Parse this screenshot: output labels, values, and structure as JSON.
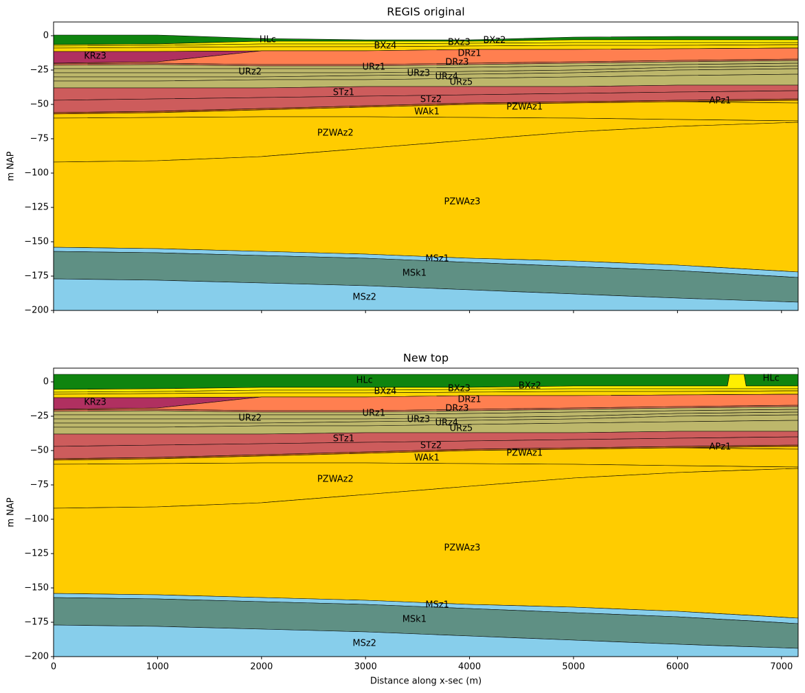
{
  "chart_data": [
    {
      "type": "layers",
      "title": "REGIS original",
      "ylabel": "m NAP",
      "x": [
        0,
        1000,
        2000,
        3000,
        4000,
        5000,
        6000,
        7160
      ],
      "xlim": [
        0,
        7160
      ],
      "ylim": [
        -200,
        10
      ],
      "xticks": [
        0,
        1000,
        2000,
        3000,
        4000,
        5000,
        6000,
        7000
      ],
      "xticklabels": false,
      "yticks": [
        0,
        {
          "value": -25,
          "label": "−25"
        },
        {
          "value": -50,
          "label": "−50"
        },
        {
          "value": -75,
          "label": "−75"
        },
        {
          "value": -100,
          "label": "−100"
        },
        {
          "value": -125,
          "label": "−125"
        },
        {
          "value": -150,
          "label": "−150"
        },
        {
          "value": -175,
          "label": "−175"
        },
        {
          "value": -200,
          "label": "−200"
        }
      ],
      "series": [
        {
          "name": "HLc",
          "color": "#0f840f",
          "values": [
            0.5,
            0.5,
            -2,
            -3,
            -3,
            -1,
            -0.5,
            -0.5
          ],
          "label_at": [
            [
              2060,
              -3
            ]
          ]
        },
        {
          "name": "BXz2",
          "color": "#ffef00",
          "values": [
            -6.5,
            -6,
            -4,
            -4,
            -4,
            -3,
            -3,
            -3
          ],
          "label_at": [
            [
              4240,
              -3.5
            ]
          ]
        },
        {
          "name": "BXz3",
          "color": "#ffe400",
          "values": [
            -7.5,
            -7,
            -6,
            -6,
            -5.5,
            -5,
            -5,
            -5
          ],
          "label_at": [
            [
              3900,
              -5
            ]
          ]
        },
        {
          "name": "BXz4",
          "color": "#ffd700",
          "values": [
            -9,
            -8.5,
            -8,
            -8,
            -7.5,
            -7,
            -7,
            -6.5
          ],
          "label_at": [
            [
              3190,
              -7.5
            ]
          ]
        },
        {
          "name": "KRz3",
          "color": "#b03060",
          "values": [
            -11.5,
            -11.5,
            -11,
            -11,
            -10,
            -10,
            -9.5,
            -9
          ],
          "label_at": [
            [
              400,
              -15
            ]
          ]
        },
        {
          "name": "DRz1",
          "color": "#ff7f50",
          "values": [
            -20,
            -19,
            -11,
            -11,
            -10,
            -10,
            -9.5,
            -9
          ],
          "label_at": [
            [
              4000,
              -13
            ]
          ]
        },
        {
          "name": "DRz3",
          "color": "#f08060",
          "values": [
            -20.5,
            -20,
            -21,
            -21,
            -20,
            -19,
            -18,
            -17
          ],
          "label_at": [
            [
              3880,
              -19.5
            ]
          ]
        },
        {
          "name": "URz2",
          "color": "#bdb76b",
          "values": [
            -21.5,
            -21,
            -22,
            -22,
            -21,
            -20,
            -19,
            -18
          ],
          "label_at": [
            [
              1890,
              -26.5
            ]
          ]
        },
        {
          "name": "URz1",
          "color": "#bdb76b",
          "values": [
            -24,
            -24,
            -24,
            -24,
            -23,
            -22,
            -21,
            -20
          ],
          "label_at": [
            [
              3080,
              -23
            ]
          ]
        },
        {
          "name": "URz3",
          "color": "#bdb76b",
          "values": [
            -27,
            -27,
            -27,
            -27,
            -26,
            -25,
            -23,
            -22
          ],
          "label_at": [
            [
              3510,
              -27.5
            ]
          ]
        },
        {
          "name": "URz4",
          "color": "#bdb76b",
          "values": [
            -30,
            -30,
            -30,
            -29,
            -28,
            -27,
            -25,
            -24
          ],
          "label_at": [
            [
              3780,
              -30
            ]
          ]
        },
        {
          "name": "URz5",
          "color": "#bdb76b",
          "values": [
            -33,
            -33,
            -32,
            -32,
            -31,
            -30,
            -29,
            -28
          ],
          "label_at": [
            [
              3920,
              -34
            ]
          ]
        },
        {
          "name": "STz1",
          "color": "#cd5c5c",
          "values": [
            -38,
            -38,
            -38,
            -37,
            -37,
            -37,
            -36,
            -36
          ],
          "label_at": [
            [
              2790,
              -41.5
            ]
          ]
        },
        {
          "name": "STz2",
          "color": "#cd5c5c",
          "values": [
            -47,
            -46,
            -45,
            -44,
            -43,
            -42,
            -41,
            -40
          ],
          "label_at": [
            [
              3630,
              -46.5
            ]
          ]
        },
        {
          "name": "WAk1",
          "color": "#d2691e",
          "values": [
            -56,
            -55,
            -53,
            -51,
            -49,
            -48,
            -47,
            -46
          ],
          "label_at": [
            [
              3590,
              -55.5
            ]
          ]
        },
        {
          "name": "APz1",
          "color": "#ffcc00",
          "values": [
            -57,
            -56,
            -54,
            -52,
            -50,
            -49,
            -48,
            -47
          ],
          "label_at": [
            [
              6410,
              -47.5
            ]
          ]
        },
        {
          "name": "PZWAz1",
          "color": "#ffcc00",
          "values": [
            -57,
            -56,
            -54,
            -52,
            -50,
            -49,
            -48,
            -49
          ],
          "label_at": [
            [
              4530,
              -52
            ]
          ]
        },
        {
          "name": "PZWAz2",
          "color": "#ffcc00",
          "values": [
            -60,
            -59.5,
            -59,
            -59,
            -59.5,
            -60,
            -61,
            -62
          ],
          "label_at": [
            [
              2710,
              -71
            ]
          ]
        },
        {
          "name": "PZWAz3",
          "color": "#ffcc00",
          "values": [
            -92,
            -91,
            -88,
            -82,
            -76,
            -70,
            -66,
            -63
          ],
          "label_at": [
            [
              3930,
              -121
            ]
          ]
        },
        {
          "name": "MSz1",
          "color": "#87ceeb",
          "values": [
            -154,
            -155,
            -157,
            -159,
            -162,
            -164,
            -167,
            -172
          ],
          "label_at": [
            [
              3690,
              -162.5
            ]
          ]
        },
        {
          "name": "MSk1",
          "color": "#5f9084",
          "values": [
            -157,
            -158,
            -160,
            -162,
            -165,
            -168,
            -171,
            -176
          ],
          "label_at": [
            [
              3470,
              -173
            ]
          ]
        },
        {
          "name": "MSz2",
          "color": "#87ceeb",
          "values": [
            -177,
            -178,
            -180,
            -182,
            -185,
            -188,
            -191,
            -194
          ],
          "label_at": [
            [
              2990,
              -190.5
            ]
          ]
        }
      ]
    },
    {
      "type": "layers",
      "title": "New top",
      "ylabel": "m NAP",
      "xlabel": "Distance along x-sec (m)",
      "x": [
        0,
        1000,
        2000,
        3000,
        4000,
        5000,
        6000,
        6480,
        6500,
        6640,
        6660,
        7160
      ],
      "xlim": [
        0,
        7160
      ],
      "ylim": [
        -200,
        10
      ],
      "xticks": [
        0,
        1000,
        2000,
        3000,
        4000,
        5000,
        6000,
        7000
      ],
      "xticklabels": true,
      "yticks": [
        0,
        {
          "value": -25,
          "label": "−25"
        },
        {
          "value": -50,
          "label": "−50"
        },
        {
          "value": -75,
          "label": "−75"
        },
        {
          "value": -100,
          "label": "−100"
        },
        {
          "value": -125,
          "label": "−125"
        },
        {
          "value": -150,
          "label": "−150"
        },
        {
          "value": -175,
          "label": "−175"
        },
        {
          "value": -200,
          "label": "−200"
        }
      ],
      "series": [
        {
          "name": "HLc",
          "color": "#0f840f",
          "values": [
            5.5,
            5.5,
            5.5,
            5.5,
            5.5,
            5.5,
            5.5,
            5.5,
            5.5,
            5.5,
            5.5,
            5.5
          ],
          "label_at": [
            [
              2990,
              1
            ],
            [
              6900,
              2.5
            ]
          ]
        },
        {
          "name": "BXz2",
          "color": "#ffef00",
          "values": [
            -5.5,
            -5,
            -4,
            -4,
            -4,
            -3,
            -3,
            -3,
            5.5,
            5.5,
            -3,
            -3
          ],
          "label_at": [
            [
              4580,
              -3
            ]
          ]
        },
        {
          "name": "BXz3",
          "color": "#ffe400",
          "values": [
            -7.5,
            -7,
            -6,
            -6,
            -5.5,
            -5,
            -5,
            -5,
            -5,
            -5,
            -5,
            -5
          ],
          "label_at": [
            [
              3900,
              -5
            ]
          ]
        },
        {
          "name": "BXz4",
          "color": "#ffd700",
          "values": [
            -9,
            -8.5,
            -8,
            -8,
            -7.5,
            -7,
            -7,
            -6.8,
            -6.8,
            -6.7,
            -6.7,
            -6.5
          ],
          "label_at": [
            [
              3190,
              -7
            ]
          ]
        },
        {
          "name": "KRz3",
          "color": "#b03060",
          "values": [
            -11.5,
            -11.5,
            -11,
            -11,
            -10,
            -10,
            -9.5,
            -9.3,
            -9.3,
            -9.2,
            -9.2,
            -9
          ],
          "label_at": [
            [
              400,
              -15
            ]
          ]
        },
        {
          "name": "DRz1",
          "color": "#ff7f50",
          "values": [
            -20,
            -19,
            -11,
            -11,
            -10,
            -10,
            -9.5,
            -9.3,
            -9.3,
            -9.2,
            -9.2,
            -9
          ],
          "label_at": [
            [
              4000,
              -13
            ]
          ]
        },
        {
          "name": "DRz3",
          "color": "#f08060",
          "values": [
            -20.5,
            -20,
            -21,
            -21,
            -20,
            -19,
            -18,
            -17.6,
            -17.6,
            -17.4,
            -17.4,
            -17
          ],
          "label_at": [
            [
              3880,
              -19.5
            ]
          ]
        },
        {
          "name": "URz2",
          "color": "#bdb76b",
          "values": [
            -21.5,
            -21,
            -22,
            -22,
            -21,
            -20,
            -19,
            -18.6,
            -18.6,
            -18.4,
            -18.4,
            -18
          ],
          "label_at": [
            [
              1890,
              -26.5
            ]
          ]
        },
        {
          "name": "URz1",
          "color": "#bdb76b",
          "values": [
            -24,
            -24,
            -24,
            -24,
            -23,
            -22,
            -21,
            -20.6,
            -20.6,
            -20.4,
            -20.4,
            -20
          ],
          "label_at": [
            [
              3080,
              -23
            ]
          ]
        },
        {
          "name": "URz3",
          "color": "#bdb76b",
          "values": [
            -27,
            -27,
            -27,
            -27,
            -26,
            -25,
            -23,
            -22.6,
            -22.6,
            -22.4,
            -22.4,
            -22
          ],
          "label_at": [
            [
              3510,
              -27.5
            ]
          ]
        },
        {
          "name": "URz4",
          "color": "#bdb76b",
          "values": [
            -30,
            -30,
            -30,
            -29,
            -28,
            -27,
            -25,
            -24.6,
            -24.6,
            -24.4,
            -24.4,
            -24
          ],
          "label_at": [
            [
              3780,
              -30
            ]
          ]
        },
        {
          "name": "URz5",
          "color": "#bdb76b",
          "values": [
            -33,
            -33,
            -32,
            -32,
            -31,
            -30,
            -29,
            -28.6,
            -28.6,
            -28.4,
            -28.4,
            -28
          ],
          "label_at": [
            [
              3920,
              -34
            ]
          ]
        },
        {
          "name": "STz1",
          "color": "#cd5c5c",
          "values": [
            -38,
            -38,
            -38,
            -37,
            -37,
            -37,
            -36,
            -36,
            -36,
            -36,
            -36,
            -36
          ],
          "label_at": [
            [
              2790,
              -41.5
            ]
          ]
        },
        {
          "name": "STz2",
          "color": "#cd5c5c",
          "values": [
            -47,
            -46,
            -45,
            -44,
            -43,
            -42,
            -41,
            -40.6,
            -40.6,
            -40.4,
            -40.4,
            -40
          ],
          "label_at": [
            [
              3630,
              -46.5
            ]
          ]
        },
        {
          "name": "WAk1",
          "color": "#d2691e",
          "values": [
            -56,
            -55,
            -53,
            -51,
            -49,
            -48,
            -47,
            -46.6,
            -46.6,
            -46.4,
            -46.4,
            -46
          ],
          "label_at": [
            [
              3590,
              -55.5
            ]
          ]
        },
        {
          "name": "APz1",
          "color": "#ffcc00",
          "values": [
            -57,
            -56,
            -54,
            -52,
            -50,
            -49,
            -48,
            -47.6,
            -47.6,
            -47.4,
            -47.4,
            -47
          ],
          "label_at": [
            [
              6410,
              -47.5
            ]
          ]
        },
        {
          "name": "PZWAz1",
          "color": "#ffcc00",
          "values": [
            -57,
            -56,
            -54,
            -52,
            -50,
            -49,
            -48,
            -48.4,
            -48.4,
            -48.6,
            -48.6,
            -49
          ],
          "label_at": [
            [
              4530,
              -52
            ]
          ]
        },
        {
          "name": "PZWAz2",
          "color": "#ffcc00",
          "values": [
            -60,
            -59.5,
            -59,
            -59,
            -59.5,
            -60,
            -61,
            -61.4,
            -61.4,
            -61.6,
            -61.6,
            -62
          ],
          "label_at": [
            [
              2710,
              -71
            ]
          ]
        },
        {
          "name": "PZWAz3",
          "color": "#ffcc00",
          "values": [
            -92,
            -91,
            -88,
            -82,
            -76,
            -70,
            -66,
            -64.7,
            -64.7,
            -64.3,
            -64.3,
            -63
          ],
          "label_at": [
            [
              3930,
              -121
            ]
          ]
        },
        {
          "name": "MSz1",
          "color": "#87ceeb",
          "values": [
            -154,
            -155,
            -157,
            -159,
            -162,
            -164,
            -167,
            -169.1,
            -169.1,
            -169.8,
            -169.8,
            -172
          ],
          "label_at": [
            [
              3690,
              -162.5
            ]
          ]
        },
        {
          "name": "MSk1",
          "color": "#5f9084",
          "values": [
            -157,
            -158,
            -160,
            -162,
            -165,
            -168,
            -171,
            -173.1,
            -173.1,
            -173.8,
            -173.8,
            -176
          ],
          "label_at": [
            [
              3470,
              -173
            ]
          ]
        },
        {
          "name": "MSz2",
          "color": "#87ceeb",
          "values": [
            -177,
            -178,
            -180,
            -182,
            -185,
            -188,
            -191,
            -192.3,
            -192.3,
            -192.7,
            -192.7,
            -194
          ],
          "label_at": [
            [
              2990,
              -190.5
            ]
          ]
        }
      ]
    }
  ]
}
